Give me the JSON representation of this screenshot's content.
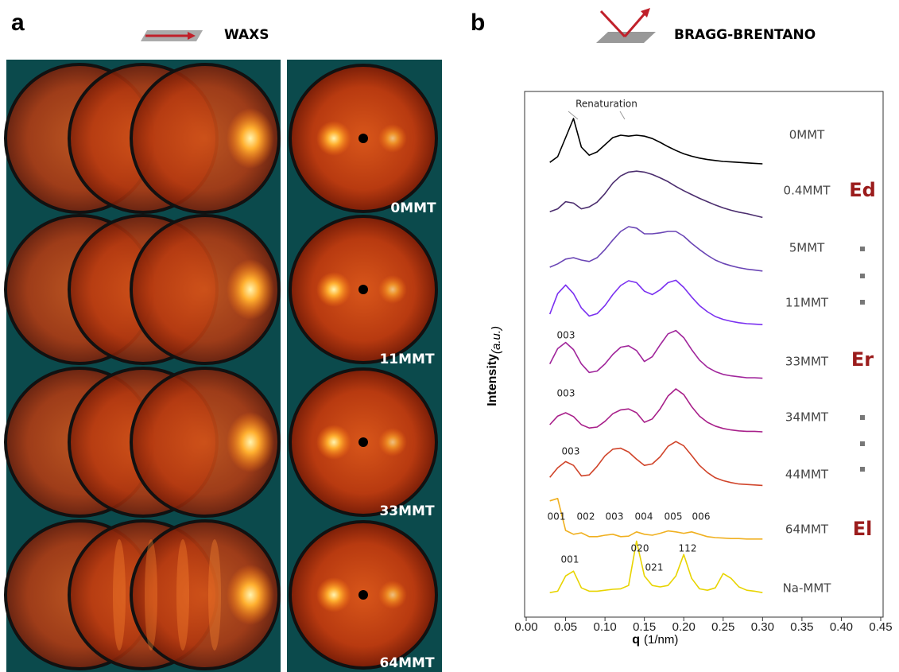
{
  "panel_a": {
    "letter": "a",
    "title": "WAXS",
    "labels": [
      "0MMT",
      "11MMT",
      "33MMT",
      "64MMT"
    ]
  },
  "panel_b": {
    "letter": "b",
    "title": "BRAGG-BRENTANO",
    "groups": [
      "Ed",
      "Er",
      "El"
    ]
  },
  "chart_data": {
    "type": "line",
    "x_label": "q",
    "x_unit": "(1/nm)",
    "y_label": "Intensity",
    "y_unit": "(a.u.)",
    "annotations": [
      "Renaturation",
      "003",
      "003",
      "003",
      "001",
      "002",
      "003",
      "004",
      "005",
      "006",
      "001",
      "020",
      "021",
      "112"
    ],
    "xlim": [
      0,
      0.45
    ],
    "xticks": [
      {
        "value": 0,
        "label": "0.00"
      },
      {
        "value": 0.05,
        "label": "0.05"
      },
      {
        "value": 0.1,
        "label": "0.10"
      },
      {
        "value": 0.15,
        "label": "0.15"
      },
      {
        "value": 0.2,
        "label": "0.20"
      },
      {
        "value": 0.25,
        "label": "0.25"
      },
      {
        "value": 0.3,
        "label": "0.30"
      },
      {
        "value": 0.35,
        "label": "0.35"
      },
      {
        "value": 0.4,
        "label": "0.40"
      },
      {
        "value": 0.45,
        "label": "0.45"
      }
    ],
    "ylim": [
      0,
      10
    ],
    "x": [
      0.03,
      0.04,
      0.05,
      0.06,
      0.07,
      0.08,
      0.09,
      0.1,
      0.11,
      0.12,
      0.13,
      0.14,
      0.15,
      0.16,
      0.17,
      0.18,
      0.19,
      0.2,
      0.21,
      0.22,
      0.23,
      0.24,
      0.25,
      0.26,
      0.27,
      0.28,
      0.29,
      0.3
    ],
    "series": [
      {
        "name": "0MMT",
        "color": "#000000",
        "values": [
          0.3,
          1.5,
          5.5,
          9.5,
          3.5,
          1.8,
          2.5,
          4.0,
          5.5,
          6.0,
          5.8,
          6.0,
          5.8,
          5.3,
          4.5,
          3.6,
          2.8,
          2.1,
          1.6,
          1.2,
          0.9,
          0.7,
          0.5,
          0.4,
          0.3,
          0.2,
          0.1,
          0
        ]
      },
      {
        "name": "0.4MMT",
        "color": "#4b2d6e",
        "values": [
          1.2,
          1.8,
          3.3,
          3.0,
          1.8,
          2.2,
          3.2,
          5.0,
          7.2,
          8.7,
          9.5,
          9.7,
          9.5,
          9.0,
          8.3,
          7.5,
          6.5,
          5.6,
          4.8,
          4.0,
          3.3,
          2.6,
          2.0,
          1.5,
          1.1,
          0.8,
          0.4,
          0
        ]
      },
      {
        "name": "5MMT",
        "color": "#6a45b5",
        "values": [
          0.8,
          1.5,
          2.5,
          2.8,
          2.3,
          2.0,
          2.8,
          4.5,
          6.5,
          8.3,
          9.3,
          9.0,
          7.8,
          7.8,
          8.0,
          8.3,
          8.3,
          7.3,
          5.8,
          4.5,
          3.3,
          2.3,
          1.6,
          1.1,
          0.7,
          0.4,
          0.2,
          0
        ]
      },
      {
        "name": "11MMT",
        "color": "#7a30f0",
        "values": [
          2.2,
          6.5,
          8.3,
          6.5,
          3.5,
          1.8,
          2.3,
          4.0,
          6.3,
          8.2,
          9.2,
          8.8,
          7.0,
          6.3,
          7.3,
          8.8,
          9.3,
          7.8,
          5.8,
          4.0,
          2.7,
          1.7,
          1.1,
          0.7,
          0.4,
          0.2,
          0.1,
          0
        ]
      },
      {
        "name": "33MMT",
        "color": "#a0259b",
        "values": [
          3.0,
          6.2,
          7.5,
          6.0,
          3.0,
          1.2,
          1.5,
          3.0,
          5.0,
          6.5,
          6.8,
          5.8,
          3.5,
          4.5,
          7.0,
          9.3,
          10.0,
          8.5,
          6.0,
          3.8,
          2.3,
          1.4,
          0.8,
          0.5,
          0.3,
          0.1,
          0.1,
          0
        ]
      },
      {
        "name": "34MMT",
        "color": "#a8208a",
        "values": [
          1.5,
          3.3,
          4.0,
          3.2,
          1.5,
          0.8,
          1.0,
          2.2,
          3.8,
          4.6,
          4.8,
          4.0,
          2.0,
          2.7,
          4.8,
          7.5,
          9.0,
          7.8,
          5.3,
          3.3,
          2.0,
          1.2,
          0.7,
          0.4,
          0.2,
          0.1,
          0.1,
          0
        ]
      },
      {
        "name": "44MMT",
        "color": "#d0442a",
        "values": [
          1.7,
          3.7,
          5.0,
          4.2,
          2.0,
          2.2,
          4.0,
          6.2,
          7.6,
          7.8,
          7.0,
          5.5,
          4.2,
          4.5,
          6.0,
          8.2,
          9.2,
          8.3,
          6.3,
          4.2,
          2.7,
          1.6,
          1.0,
          0.6,
          0.3,
          0.2,
          0.1,
          0
        ]
      },
      {
        "name": "64MMT",
        "color": "#f0b020",
        "values": [
          8.0,
          8.5,
          1.8,
          1.0,
          1.3,
          0.5,
          0.5,
          0.8,
          1.0,
          0.5,
          0.6,
          1.5,
          1.0,
          0.8,
          1.2,
          1.7,
          1.5,
          1.2,
          1.5,
          1.0,
          0.5,
          0.3,
          0.2,
          0.1,
          0.1,
          0,
          0,
          0
        ]
      },
      {
        "name": "Na-MMT",
        "color": "#e8d400",
        "values": [
          0,
          0.3,
          3.5,
          4.5,
          1.0,
          0.3,
          0.3,
          0.5,
          0.7,
          0.8,
          1.5,
          10.8,
          3.5,
          1.5,
          1.2,
          1.5,
          3.5,
          8.0,
          3.0,
          0.8,
          0.5,
          1.0,
          4.0,
          3.0,
          1.2,
          0.5,
          0.3,
          0
        ]
      }
    ]
  }
}
